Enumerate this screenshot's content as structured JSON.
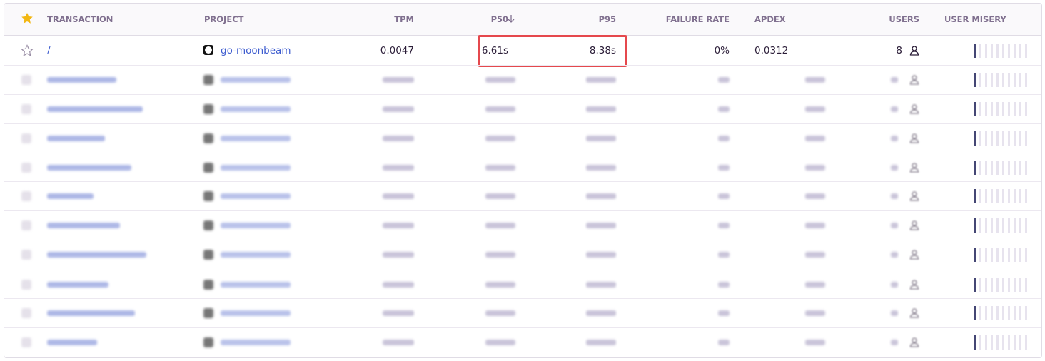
{
  "table": {
    "columns": [
      "TRANSACTION",
      "PROJECT",
      "TPM",
      "P50",
      "P95",
      "FAILURE RATE",
      "APDEX",
      "USERS",
      "USER MISERY"
    ],
    "rows": [
      [
        "/",
        "go-moonbeam",
        "0.0047",
        "6.61s",
        "8.38s",
        "0%",
        "0.0312",
        "8"
      ]
    ]
  }
}
